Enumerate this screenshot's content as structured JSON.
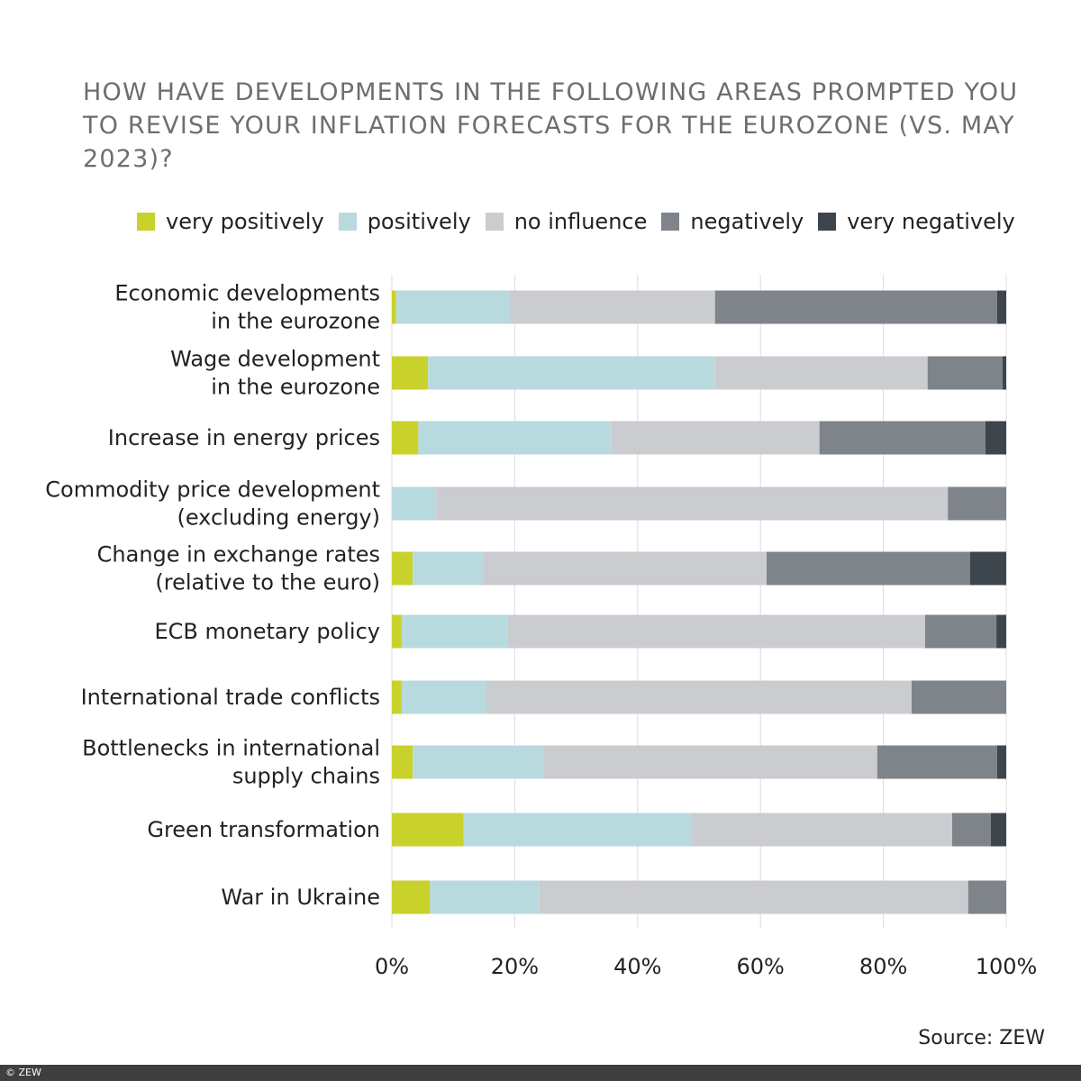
{
  "chart_data": {
    "type": "bar",
    "orientation": "horizontal",
    "stacked": true,
    "title": "HOW HAVE DEVELOPMENTS IN THE FOLLOWING AREAS PROMPTED YOU TO REVISE YOUR INFLATION FORECASTS FOR THE EUROZONE (VS. MAY 2023)?",
    "categories": [
      [
        "Economic developments",
        "in the eurozone"
      ],
      [
        "Wage development",
        "in the eurozone"
      ],
      [
        "Increase in energy prices"
      ],
      [
        "Commodity price development",
        "(excluding energy)"
      ],
      [
        "Change in exchange rates",
        "(relative to the euro)"
      ],
      [
        "ECB monetary policy"
      ],
      [
        "International trade conflicts"
      ],
      [
        "Bottlenecks in international",
        "supply chains"
      ],
      [
        "Green transformation"
      ],
      [
        "War in Ukraine"
      ]
    ],
    "series": [
      {
        "name": "very positively",
        "color": "#c8d22a",
        "values": [
          0.7,
          5.9,
          4.3,
          0,
          3.4,
          1.6,
          1.6,
          3.4,
          11.7,
          6.2
        ]
      },
      {
        "name": "positively",
        "color": "#b8dadf",
        "values": [
          18.4,
          46.7,
          31.3,
          7.2,
          11.4,
          17.2,
          13.8,
          21.2,
          37.0,
          17.8
        ]
      },
      {
        "name": "no influence",
        "color": "#cbcccf",
        "values": [
          33.5,
          34.6,
          34.0,
          83.3,
          46.2,
          68.0,
          69.2,
          54.4,
          42.5,
          69.8
        ]
      },
      {
        "name": "negatively",
        "color": "#7f838a",
        "values": [
          45.9,
          12.2,
          27.0,
          9.5,
          33.1,
          11.6,
          15.4,
          19.5,
          6.3,
          6.2
        ]
      },
      {
        "name": "very negatively",
        "color": "#3d454d",
        "values": [
          1.5,
          0.6,
          3.4,
          0,
          5.9,
          1.6,
          0,
          1.5,
          2.5,
          0
        ]
      }
    ],
    "xlim": [
      0,
      100
    ],
    "xticks": [
      "0%",
      "20%",
      "40%",
      "60%",
      "80%",
      "100%"
    ],
    "grid": "vertical",
    "legend": "top",
    "source": "Source: ZEW"
  },
  "footer": "© ZEW"
}
